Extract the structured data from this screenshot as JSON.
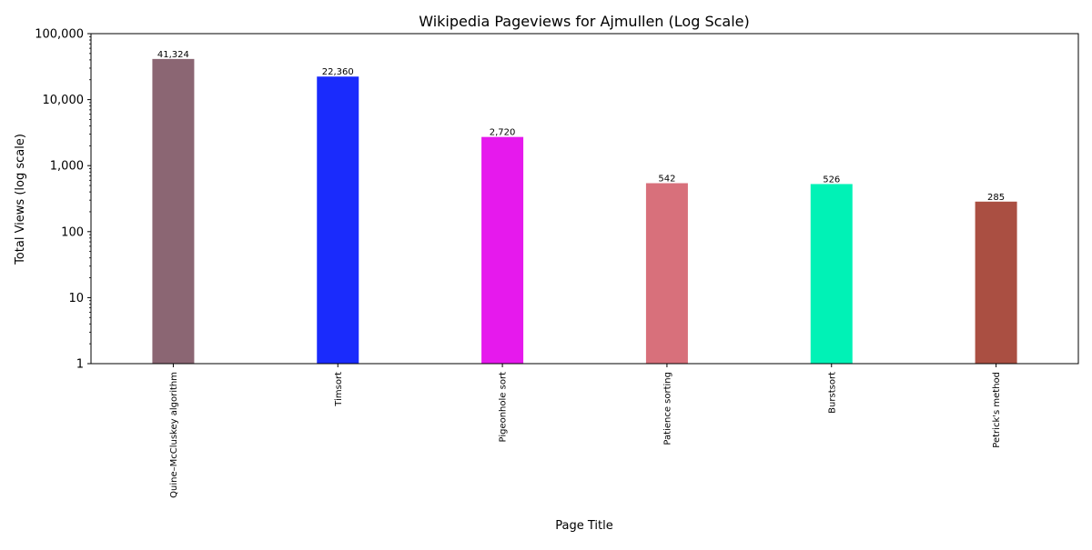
{
  "chart_data": {
    "type": "bar",
    "title": "Wikipedia Pageviews for Ajmullen (Log Scale)",
    "xlabel": "Page Title",
    "ylabel": "Total Views (log scale)",
    "yscale": "log",
    "ylim": [
      1,
      100000
    ],
    "yticks": [
      1,
      10,
      100,
      1000,
      10000,
      100000
    ],
    "ytick_labels": [
      "1",
      "10",
      "100",
      "1,000",
      "10,000",
      "100,000"
    ],
    "categories": [
      "Quine–McCluskey algorithm",
      "Timsort",
      "Pigeonhole sort",
      "Patience sorting",
      "Burstsort",
      "Petrick's method"
    ],
    "values": [
      41324,
      22360,
      2720,
      542,
      526,
      285
    ],
    "value_labels": [
      "41,324",
      "22,360",
      "2,720",
      "542",
      "526",
      "285"
    ],
    "colors": [
      "#8b6673",
      "#1a2bfc",
      "#e619ed",
      "#d8707b",
      "#00f2b6",
      "#aa4f42"
    ],
    "grid": false,
    "legend": "none"
  }
}
